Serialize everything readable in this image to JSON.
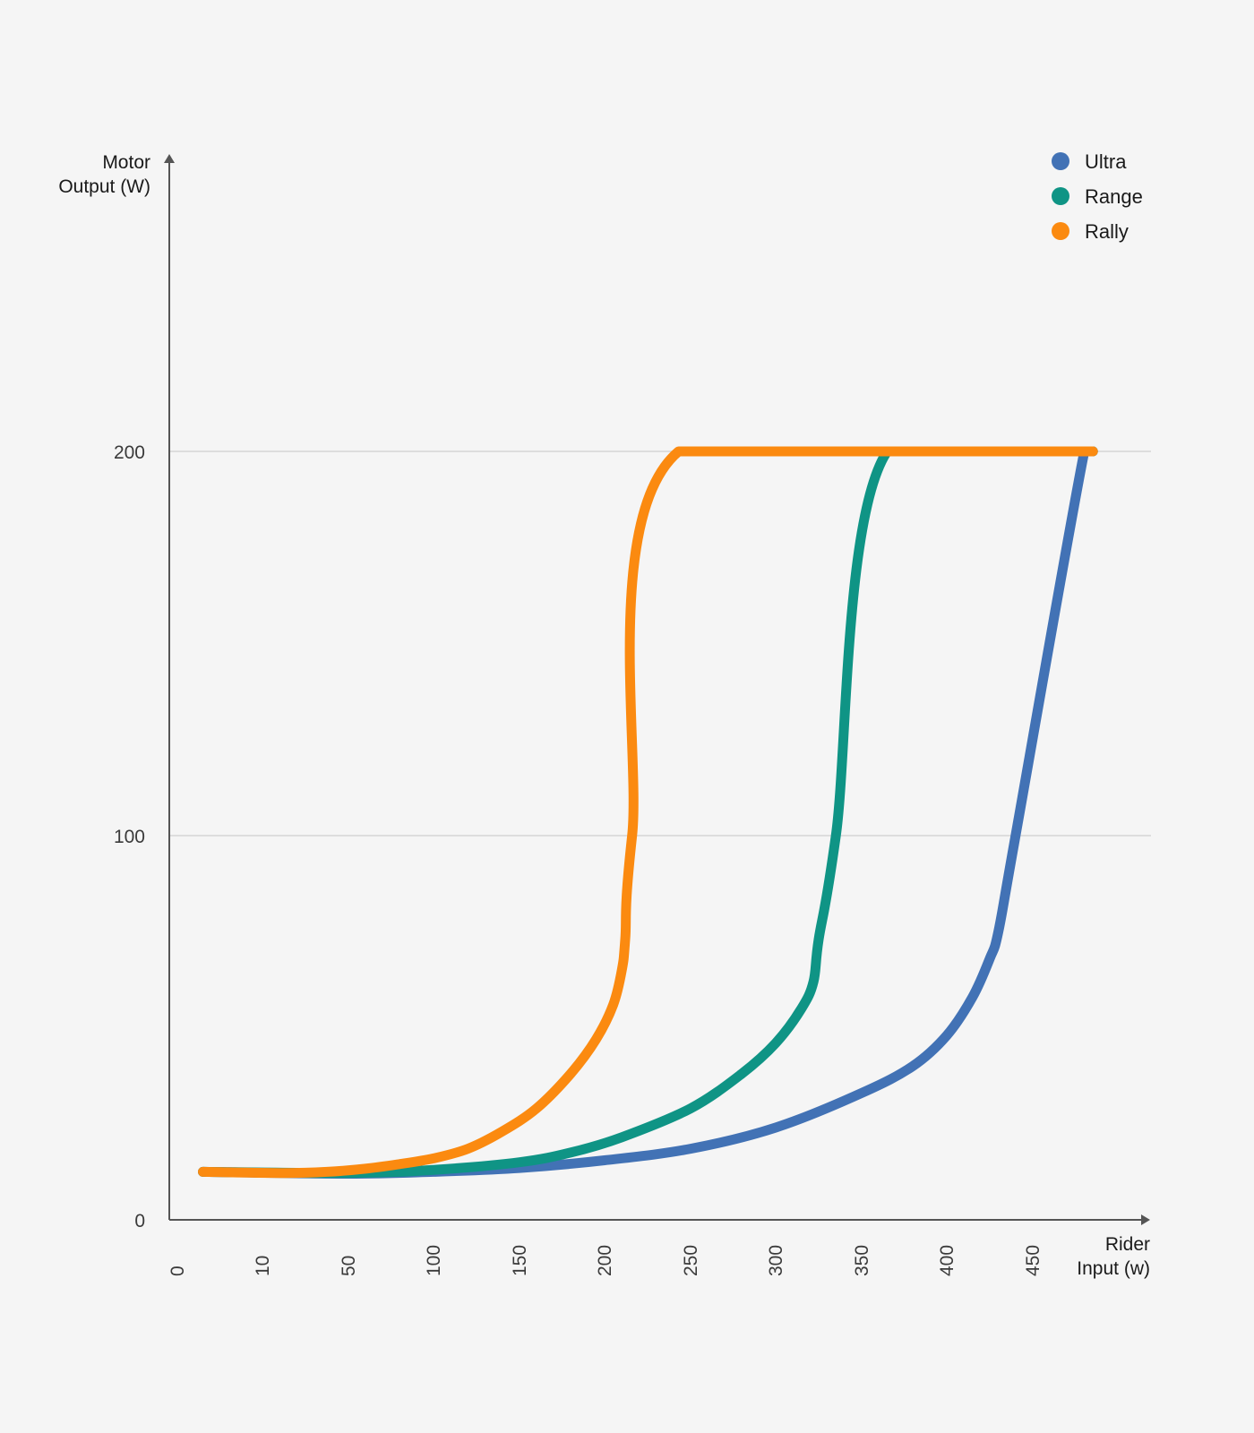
{
  "chart_data": {
    "type": "line",
    "ylabel": [
      "Motor",
      "Output (W)"
    ],
    "xlabel": [
      "Rider",
      "Input (w)"
    ],
    "x_ticks": [
      "0",
      "10",
      "50",
      "100",
      "150",
      "200",
      "250",
      "300",
      "350",
      "400",
      "450"
    ],
    "y_ticks": [
      0,
      100,
      200
    ],
    "ylim": [
      0,
      250
    ],
    "gridlines_y": [
      100,
      200
    ],
    "legend_position": "top-right",
    "series": [
      {
        "name": "Ultra",
        "color": "#4272b5",
        "points": [
          [
            3,
            12.5
          ],
          [
            50,
            12
          ],
          [
            100,
            12.5
          ],
          [
            150,
            13.5
          ],
          [
            200,
            15.5
          ],
          [
            250,
            18.5
          ],
          [
            300,
            24
          ],
          [
            350,
            33
          ],
          [
            380,
            40
          ],
          [
            400,
            48
          ],
          [
            415,
            58
          ],
          [
            425,
            68
          ],
          [
            430,
            75
          ],
          [
            440,
            100
          ],
          [
            480,
            200
          ],
          [
            485,
            200
          ]
        ]
      },
      {
        "name": "Range",
        "color": "#0f9485",
        "points": [
          [
            3,
            12.5
          ],
          [
            50,
            12.2
          ],
          [
            100,
            13
          ],
          [
            150,
            15
          ],
          [
            180,
            17.5
          ],
          [
            210,
            21.5
          ],
          [
            250,
            29
          ],
          [
            280,
            38
          ],
          [
            300,
            46
          ],
          [
            315,
            55
          ],
          [
            322,
            62
          ],
          [
            325,
            73
          ],
          [
            335,
            100
          ],
          [
            365,
            200
          ],
          [
            485,
            200
          ]
        ]
      },
      {
        "name": "Rally",
        "color": "#fb8a10",
        "points": [
          [
            3,
            12.5
          ],
          [
            20,
            12.2
          ],
          [
            40,
            12.5
          ],
          [
            60,
            13.3
          ],
          [
            80,
            14.5
          ],
          [
            100,
            16
          ],
          [
            120,
            18.5
          ],
          [
            140,
            23
          ],
          [
            160,
            29
          ],
          [
            180,
            38
          ],
          [
            195,
            47
          ],
          [
            205,
            56
          ],
          [
            210,
            65
          ],
          [
            212,
            73
          ],
          [
            216,
            100
          ],
          [
            243,
            200
          ],
          [
            485,
            200
          ]
        ]
      }
    ]
  }
}
